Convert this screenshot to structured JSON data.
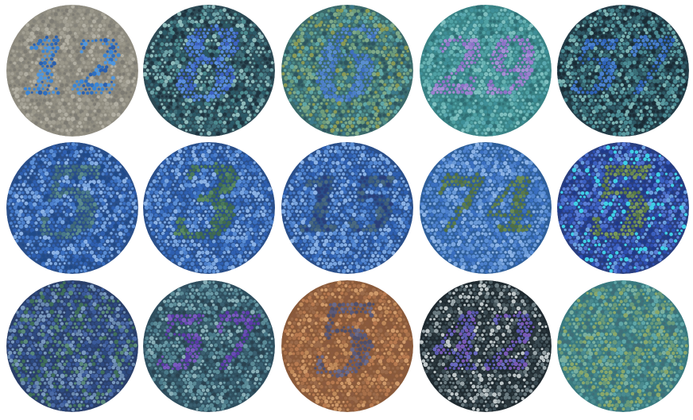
{
  "plates": [
    {
      "id": "plate-1",
      "numeral": "12",
      "background": "#8f8c80",
      "dots": [
        "#9a978a",
        "#85837a",
        "#a3a094",
        "#7d7b73",
        "#b2afa3"
      ],
      "figure": [
        "#2e6fc0",
        "#3b86d6",
        "#4f96de",
        "#2a5fae"
      ]
    },
    {
      "id": "plate-2",
      "numeral": "8",
      "background": "#2d4a55",
      "dots": [
        "#3f6f7a",
        "#6fa3a8",
        "#1f3440",
        "#8fbcbc",
        "#4c8a8f",
        "#2b5866"
      ],
      "figure": [
        "#3d63c4",
        "#4c7bd3",
        "#5a8fdf"
      ]
    },
    {
      "id": "plate-3",
      "numeral": "6",
      "background": "#3b6a6b",
      "dots": [
        "#4d8a87",
        "#6e9c7b",
        "#8a9a55",
        "#2e5660",
        "#5fa6a6",
        "#7faa8a",
        "#3c7a8c"
      ],
      "figure": [
        "#3f70bf",
        "#4d80c8",
        "#5a8ed0"
      ]
    },
    {
      "id": "plate-4",
      "numeral": "29",
      "background": "#3a8386",
      "dots": [
        "#4fa0a3",
        "#69b3b3",
        "#2f6f75",
        "#7fc0c0",
        "#3f8f98",
        "#5aa8b0"
      ],
      "figure": [
        "#8f72c8",
        "#9c80d0",
        "#a88ed6"
      ]
    },
    {
      "id": "plate-5",
      "numeral": "57",
      "background": "#233d48",
      "dots": [
        "#3a6f78",
        "#5a9aa0",
        "#1a2c36",
        "#7cb3b3",
        "#2f5966",
        "#4a8a93"
      ],
      "figure": [
        "#2f63b8",
        "#3a72c6",
        "#4a82d0"
      ]
    },
    {
      "id": "plate-6",
      "numeral": "5",
      "background": "#2a4f8a",
      "dots": [
        "#3a6fc0",
        "#5a8ed6",
        "#7aa6e0",
        "#2e5fb0",
        "#4c80cc",
        "#8cb3e6",
        "#1f4a8a"
      ],
      "figure": [
        "#4a7a8a",
        "#5a8a8c",
        "#3f6a7a"
      ]
    },
    {
      "id": "plate-7",
      "numeral": "3",
      "background": "#2a4f8a",
      "dots": [
        "#3a6fc0",
        "#5a8ed6",
        "#7aa6e0",
        "#2e5fb0",
        "#4c80cc",
        "#8cb3e6"
      ],
      "figure": [
        "#4a7a5a",
        "#5a8a60",
        "#3f6a50"
      ]
    },
    {
      "id": "plate-8",
      "numeral": "15",
      "background": "#2a4f8a",
      "dots": [
        "#3a6fc0",
        "#5a8ed6",
        "#7aa6e0",
        "#2e5fb0",
        "#4c80cc",
        "#8cb3e6"
      ],
      "figure": [
        "#3f5f7a",
        "#4a6a80",
        "#2a3f7a"
      ]
    },
    {
      "id": "plate-9",
      "numeral": "74",
      "background": "#2f5f9a",
      "dots": [
        "#3a6fc0",
        "#5a8ed6",
        "#7aa6e0",
        "#4c80cc",
        "#8cb3e6",
        "#6a9ad8"
      ],
      "figure": [
        "#5a7a4a",
        "#6a8a50",
        "#4f6f45"
      ]
    },
    {
      "id": "plate-10",
      "numeral": "5",
      "background": "#2a3f80",
      "dots": [
        "#3a5fc0",
        "#5a7ed6",
        "#2e4fb0",
        "#6aa0e0",
        "#3fd0e8",
        "#4c70cc",
        "#1f3a8a"
      ],
      "figure": [
        "#6a8a50",
        "#7a9a5a",
        "#5a7a45"
      ]
    },
    {
      "id": "plate-11",
      "numeral": "",
      "background": "#2a3f6a",
      "dots": [
        "#3a5a9a",
        "#4a6aa6",
        "#5a8a7a",
        "#2e4a80",
        "#6a8ab0",
        "#3f6f5a",
        "#7a9ac0"
      ],
      "figure": []
    },
    {
      "id": "plate-12",
      "numeral": "57",
      "background": "#2f4f5f",
      "dots": [
        "#4a7a8a",
        "#6a9aa6",
        "#3a5f70",
        "#8ab0b8",
        "#5a8a96",
        "#2a4250"
      ],
      "figure": [
        "#5a3aa8",
        "#6a4ab6",
        "#7a5ac0"
      ]
    },
    {
      "id": "plate-13",
      "numeral": "5",
      "background": "#8a5a3a",
      "dots": [
        "#a8704a",
        "#c08a5a",
        "#8a5a3f",
        "#b87a50",
        "#d09a6a",
        "#9a6a4a"
      ],
      "figure": [
        "#5a5a7a",
        "#6a6a8a",
        "#4f4f6a"
      ]
    },
    {
      "id": "plate-14",
      "numeral": "42",
      "background": "#1f2a30",
      "dots": [
        "#3a4a52",
        "#6a7a80",
        "#9aa6aa",
        "#2a363c",
        "#c0c8ca",
        "#4a5a60"
      ],
      "figure": [
        "#5a5ab0",
        "#6a6ac0",
        "#7a5ab8"
      ]
    },
    {
      "id": "plate-15",
      "numeral": "",
      "background": "#3a7a80",
      "dots": [
        "#4a8a8f",
        "#6a9a7a",
        "#8aa86a",
        "#3f6f78",
        "#5fa6a8",
        "#7ab0a0"
      ],
      "figure": []
    }
  ]
}
